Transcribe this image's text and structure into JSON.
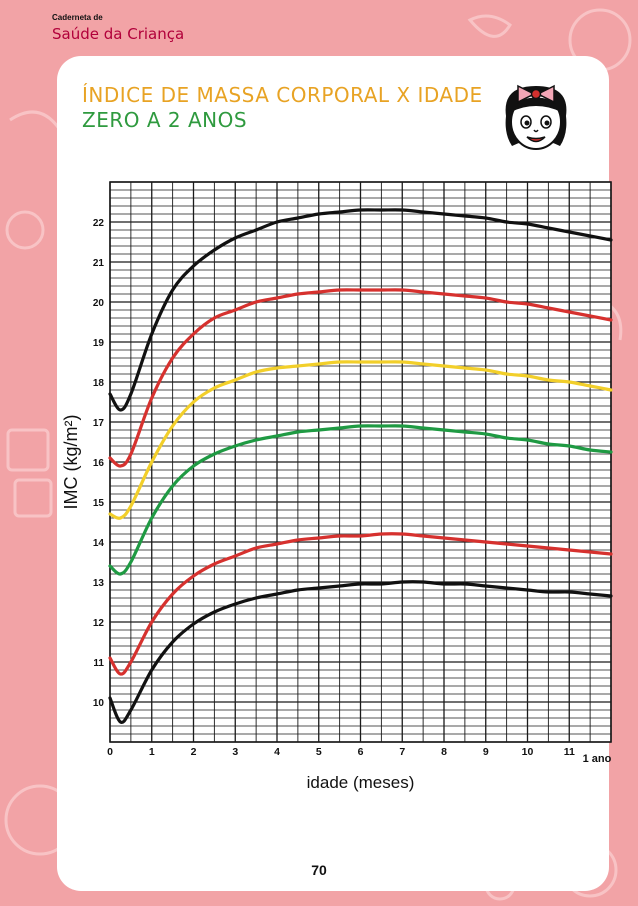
{
  "header": {
    "line1": "Caderneta de",
    "line2": "Saúde da Criança"
  },
  "title": {
    "line1": "ÍNDICE DE MASSA CORPORAL X IDADE",
    "line2": "ZERO A 2 ANOS"
  },
  "page_number": "70",
  "colors": {
    "background": "#f2a3a6",
    "header_accent": "#b1003a",
    "title_line1": "#e8a324",
    "title_line2": "#2f9a3f",
    "grid": "#1a1a1a",
    "curve_black": "#111111",
    "curve_red": "#d6312e",
    "curve_yellow": "#f2cf2a",
    "curve_green": "#1f9a43"
  },
  "chart_data": {
    "type": "line",
    "title": "ÍNDICE DE MASSA CORPORAL X IDADE",
    "subtitle": "ZERO A 2 ANOS",
    "xlabel": "idade (meses)",
    "ylabel": "IMC (kg/m²)",
    "xlim": [
      0,
      12
    ],
    "ylim": [
      9,
      23
    ],
    "x_ticks": [
      "0",
      "1",
      "2",
      "3",
      "4",
      "5",
      "6",
      "7",
      "8",
      "9",
      "10",
      "11",
      "1 ano"
    ],
    "y_ticks": [
      "10",
      "11",
      "12",
      "13",
      "14",
      "15",
      "16",
      "17",
      "18",
      "19",
      "20",
      "21",
      "22"
    ],
    "grid": true,
    "x": [
      0,
      0.25,
      0.5,
      1,
      1.5,
      2,
      2.5,
      3,
      3.5,
      4,
      4.5,
      5,
      5.5,
      6,
      6.5,
      7,
      7.5,
      8,
      8.5,
      9,
      9.5,
      10,
      10.5,
      11,
      11.5,
      12
    ],
    "series": [
      {
        "color": "#111111",
        "values": [
          17.7,
          17.3,
          17.7,
          19.2,
          20.3,
          20.9,
          21.3,
          21.6,
          21.8,
          22.0,
          22.1,
          22.2,
          22.25,
          22.3,
          22.3,
          22.3,
          22.25,
          22.2,
          22.15,
          22.1,
          22.0,
          21.95,
          21.85,
          21.75,
          21.65,
          21.55
        ]
      },
      {
        "color": "#d6312e",
        "values": [
          16.1,
          15.9,
          16.2,
          17.6,
          18.6,
          19.2,
          19.6,
          19.8,
          20.0,
          20.1,
          20.2,
          20.25,
          20.3,
          20.3,
          20.3,
          20.3,
          20.25,
          20.2,
          20.15,
          20.1,
          20.0,
          19.95,
          19.85,
          19.75,
          19.65,
          19.55
        ]
      },
      {
        "color": "#f2cf2a",
        "values": [
          14.7,
          14.6,
          14.9,
          16.0,
          16.9,
          17.5,
          17.85,
          18.05,
          18.25,
          18.35,
          18.4,
          18.45,
          18.5,
          18.5,
          18.5,
          18.5,
          18.45,
          18.4,
          18.35,
          18.3,
          18.2,
          18.15,
          18.05,
          18.0,
          17.9,
          17.8
        ]
      },
      {
        "color": "#1f9a43",
        "values": [
          13.4,
          13.2,
          13.5,
          14.6,
          15.4,
          15.9,
          16.2,
          16.4,
          16.55,
          16.65,
          16.75,
          16.8,
          16.85,
          16.9,
          16.9,
          16.9,
          16.85,
          16.8,
          16.75,
          16.7,
          16.6,
          16.55,
          16.45,
          16.4,
          16.3,
          16.25
        ]
      },
      {
        "color": "#d6312e",
        "values": [
          11.1,
          10.7,
          11.0,
          12.0,
          12.7,
          13.15,
          13.45,
          13.65,
          13.85,
          13.95,
          14.05,
          14.1,
          14.15,
          14.15,
          14.2,
          14.2,
          14.15,
          14.1,
          14.05,
          14.0,
          13.95,
          13.9,
          13.85,
          13.8,
          13.75,
          13.7
        ]
      },
      {
        "color": "#111111",
        "values": [
          10.1,
          9.5,
          9.8,
          10.8,
          11.5,
          11.95,
          12.25,
          12.45,
          12.6,
          12.7,
          12.8,
          12.85,
          12.9,
          12.95,
          12.95,
          13.0,
          13.0,
          12.95,
          12.95,
          12.9,
          12.85,
          12.8,
          12.75,
          12.75,
          12.7,
          12.65
        ]
      }
    ]
  }
}
